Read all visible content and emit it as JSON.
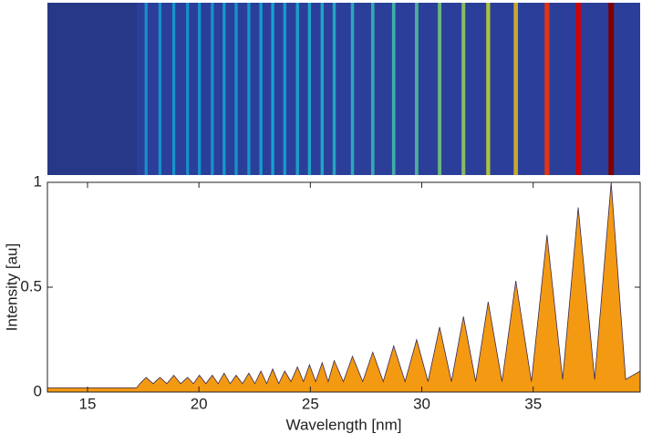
{
  "chart_data": {
    "type": "area",
    "xlabel": "Wavelength [nm]",
    "ylabel": "Intensity [au]",
    "x": [
      13.2,
      17.2,
      17.35,
      17.63,
      17.94,
      18.25,
      18.56,
      18.87,
      19.18,
      19.49,
      19.75,
      20.02,
      20.31,
      20.6,
      20.86,
      21.13,
      21.4,
      21.67,
      21.95,
      22.24,
      22.51,
      22.78,
      23.04,
      23.31,
      23.58,
      23.85,
      24.13,
      24.42,
      24.69,
      24.96,
      25.24,
      25.53,
      25.8,
      26.07,
      26.48,
      26.89,
      27.35,
      27.8,
      28.27,
      28.74,
      29.25,
      29.77,
      30.28,
      30.8,
      31.33,
      31.87,
      32.42,
      32.98,
      33.6,
      34.22,
      34.92,
      35.62,
      36.32,
      37.02,
      37.76,
      38.5,
      39.15,
      39.8
    ],
    "series": [
      {
        "color": "#f39a12",
        "values": [
          0.02,
          0.02,
          0.04,
          0.07,
          0.04,
          0.07,
          0.04,
          0.08,
          0.04,
          0.07,
          0.04,
          0.08,
          0.04,
          0.08,
          0.04,
          0.09,
          0.04,
          0.08,
          0.04,
          0.09,
          0.04,
          0.1,
          0.04,
          0.11,
          0.04,
          0.1,
          0.05,
          0.12,
          0.05,
          0.13,
          0.05,
          0.14,
          0.05,
          0.15,
          0.05,
          0.17,
          0.05,
          0.19,
          0.05,
          0.22,
          0.05,
          0.25,
          0.05,
          0.31,
          0.05,
          0.36,
          0.05,
          0.43,
          0.05,
          0.53,
          0.05,
          0.75,
          0.06,
          0.88,
          0.06,
          1.0,
          0.06,
          0.1
        ]
      }
    ],
    "xlim": [
      13.2,
      39.8
    ],
    "xticks": [
      15,
      20,
      25,
      30,
      35
    ],
    "ylim": [
      0,
      1
    ],
    "yticks": [
      0,
      0.5,
      1
    ]
  }
}
